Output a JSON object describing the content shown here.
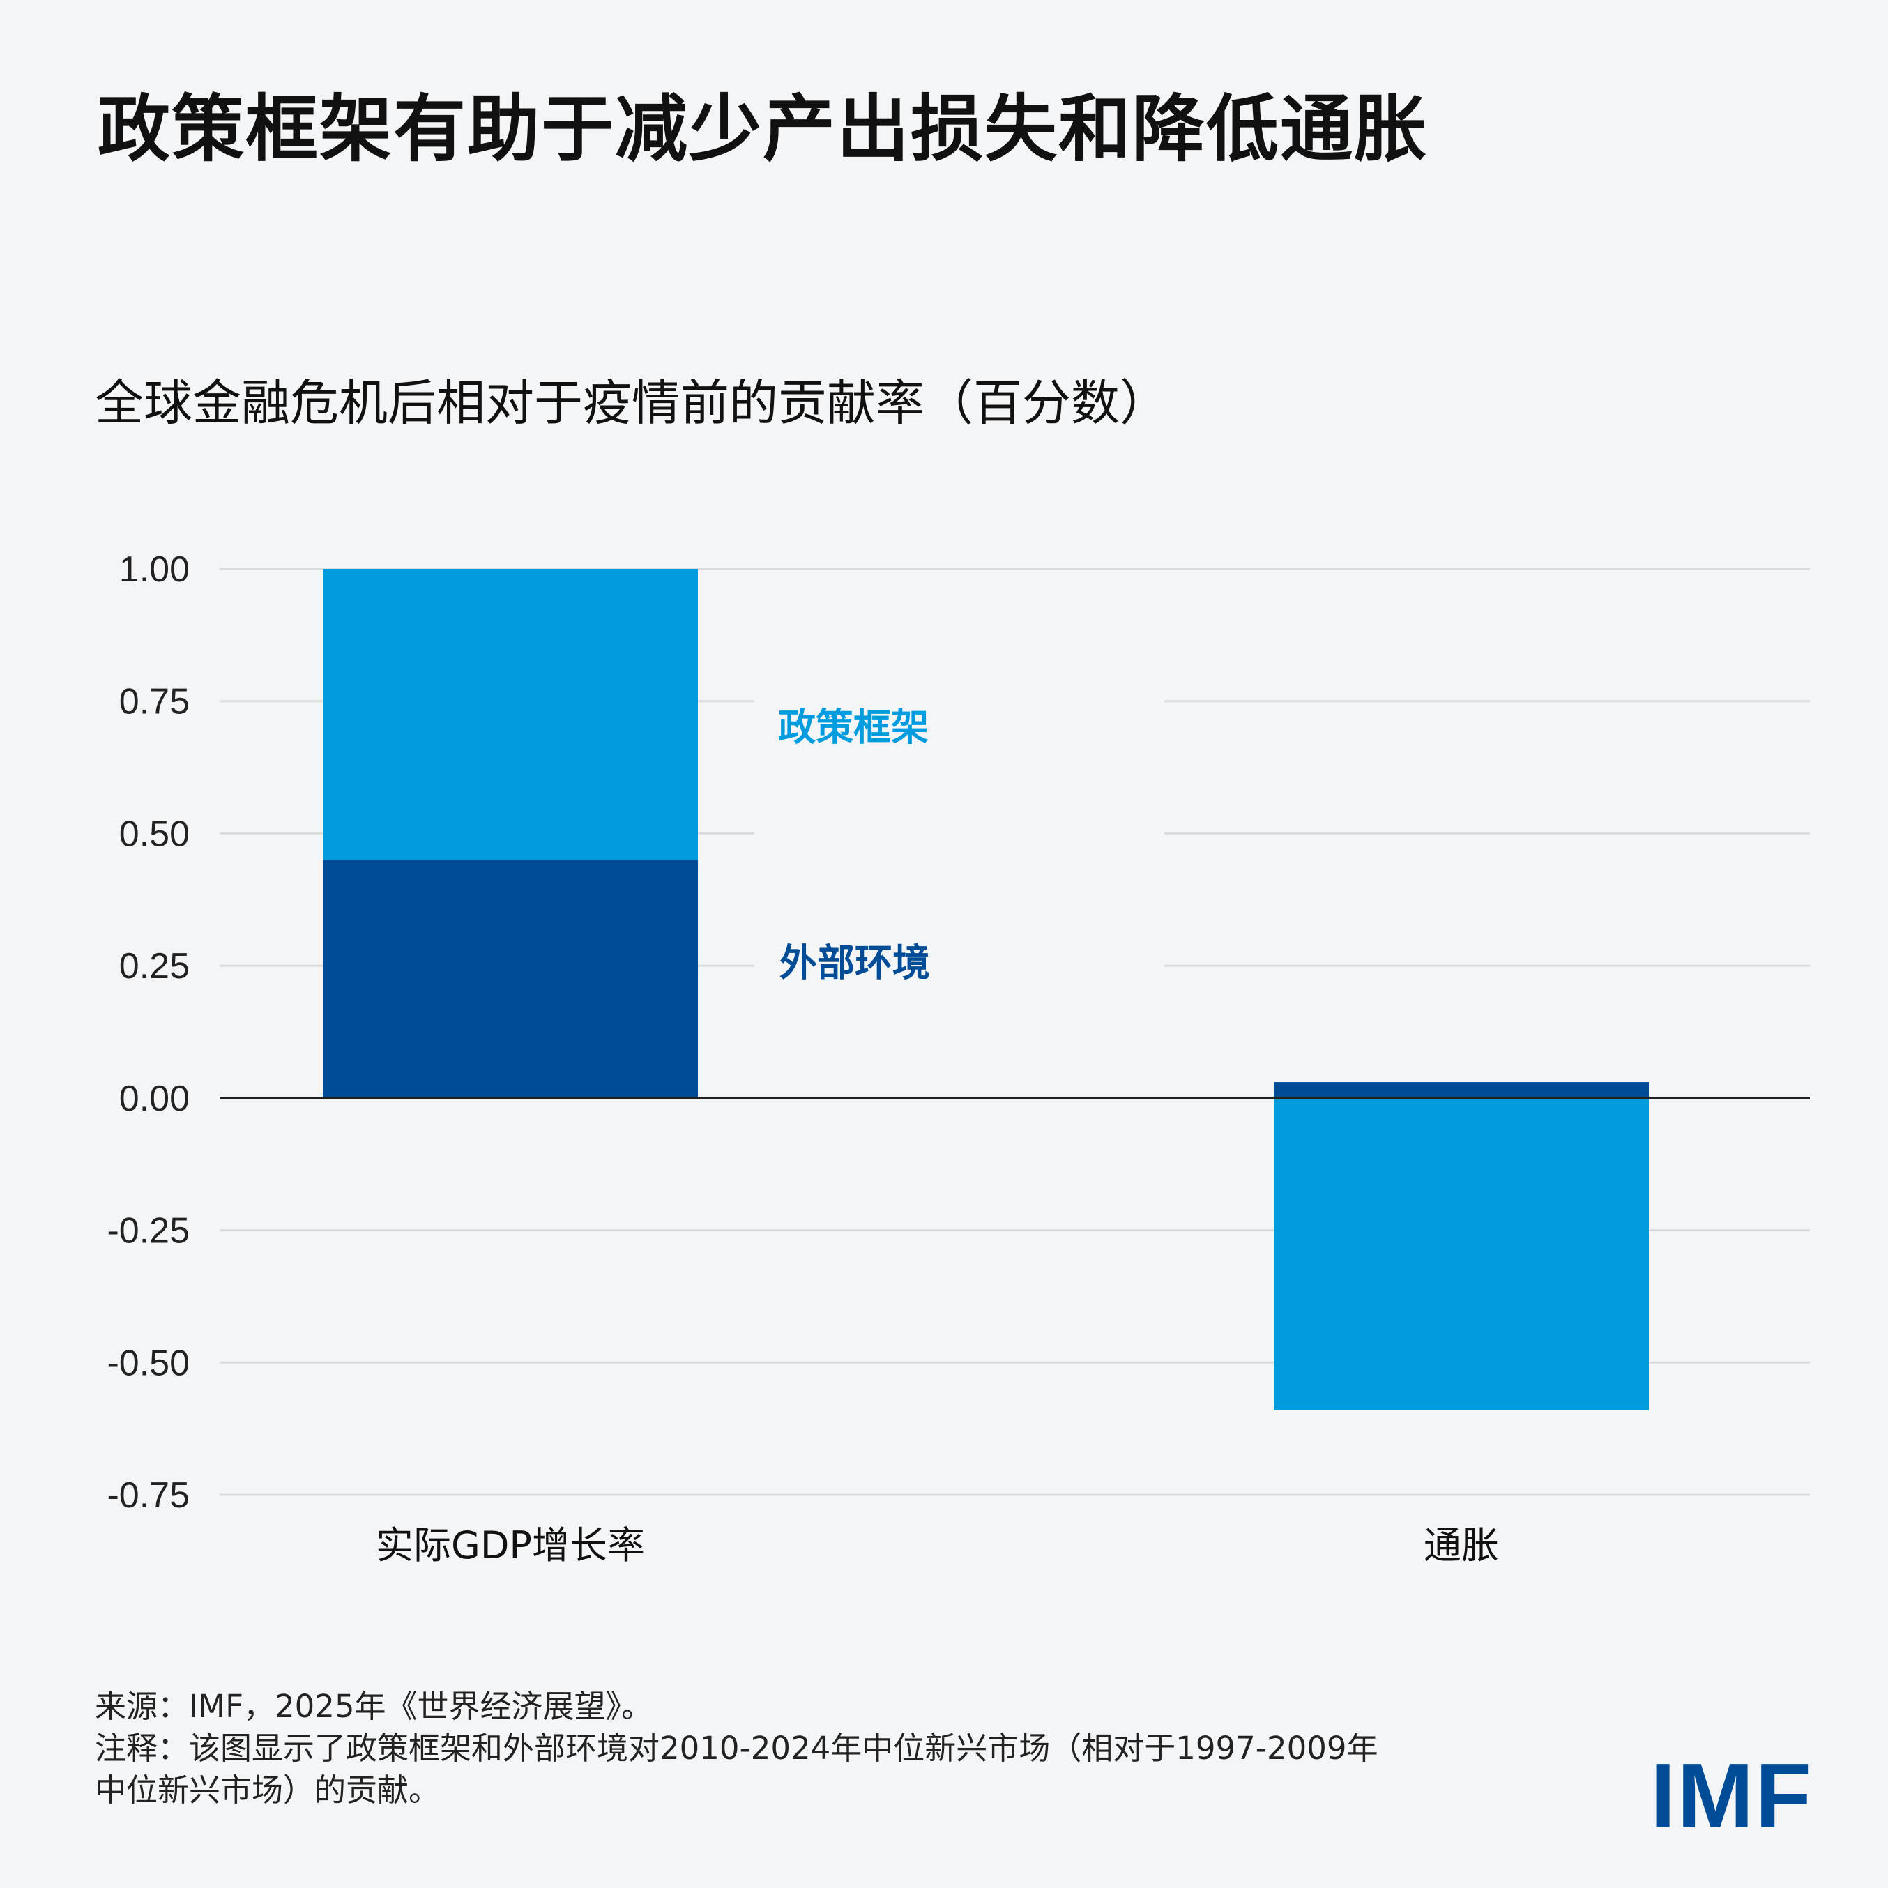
{
  "header": {
    "title": "政策框架有助于减少产出损失和降低通胀",
    "subtitle": "全球金融危机后相对于疫情前的贡献率（百分数）"
  },
  "chart_data": {
    "type": "bar",
    "stacked": true,
    "title": "政策框架有助于减少产出损失和降低通胀",
    "subtitle": "全球金融危机后相对于疫情前的贡献率（百分数）",
    "categories": [
      "实际GDP增长率",
      "通胀"
    ],
    "series": [
      {
        "name": "外部环境",
        "values": [
          0.45,
          0.03
        ],
        "color": "#004c97"
      },
      {
        "name": "政策框架",
        "values": [
          0.55,
          -0.59
        ],
        "color": "#009cde"
      }
    ],
    "ylim": [
      -0.75,
      1.0
    ],
    "yticks": [
      "1.00",
      "0.75",
      "0.50",
      "0.25",
      "0.00",
      "-0.25",
      "-0.50",
      "-0.75"
    ],
    "ytick_values": [
      1.0,
      0.75,
      0.5,
      0.25,
      0.0,
      -0.25,
      -0.5,
      -0.75
    ],
    "grid": true,
    "legend": "inline-labels"
  },
  "footer": {
    "source": "来源：IMF，2025年《世界经济展望》。",
    "note_line1": "注释：该图显示了政策框架和外部环境对2010-2024年中位新兴市场（相对于1997-2009年",
    "note_line2": "中位新兴市场）的贡献。"
  },
  "logo": {
    "text": "IMF",
    "color": "#004c97"
  }
}
